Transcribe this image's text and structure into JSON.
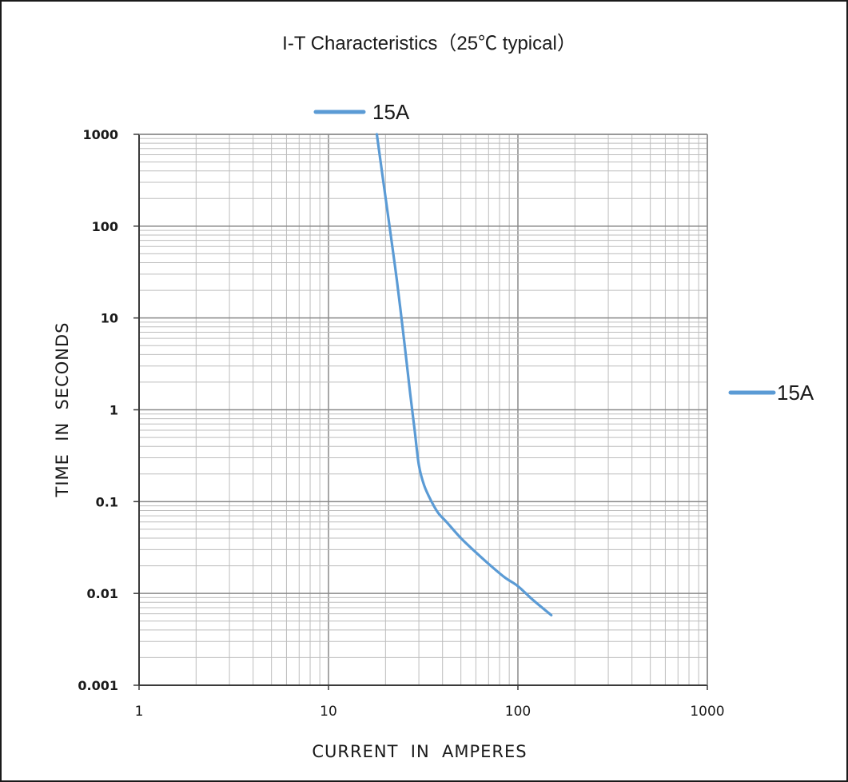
{
  "chart_data": {
    "type": "line",
    "title": "I-T Characteristics（25℃ typical）",
    "xlabel": "CURRENT  IN  AMPERES",
    "ylabel": "TIME  IN  SECONDS",
    "x_scale": "log",
    "y_scale": "log",
    "xlim": [
      1,
      1000
    ],
    "ylim": [
      0.001,
      1000
    ],
    "x_ticks": [
      "1",
      "10",
      "100",
      "1000"
    ],
    "y_ticks": [
      "0.001",
      "0.01",
      "0.1",
      "1",
      "10",
      "100",
      "1000"
    ],
    "grid": true,
    "legend_entries": [
      {
        "label": "15A",
        "placement": "top-left"
      },
      {
        "label": "15A",
        "placement": "right"
      }
    ],
    "series": [
      {
        "name": "15A",
        "color": "#5b9bd5",
        "x": [
          18,
          19.5,
          21,
          23,
          25,
          27,
          28.5,
          30,
          32,
          35,
          38,
          42,
          50,
          60,
          70,
          85,
          100,
          120,
          150
        ],
        "y": [
          1000,
          300,
          100,
          25,
          6,
          1.5,
          0.6,
          0.25,
          0.15,
          0.1,
          0.075,
          0.06,
          0.04,
          0.028,
          0.021,
          0.015,
          0.012,
          0.0085,
          0.0058
        ]
      }
    ]
  }
}
